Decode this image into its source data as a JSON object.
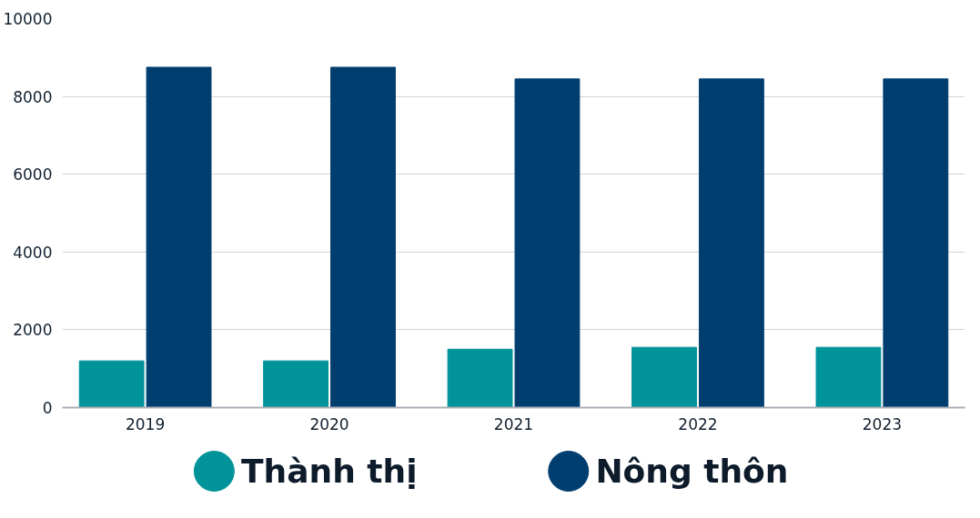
{
  "chart_data": {
    "type": "bar",
    "categories": [
      "2019",
      "2020",
      "2021",
      "2022",
      "2023"
    ],
    "series": [
      {
        "name": "Thành thị",
        "color": "#00939a",
        "values": [
          1200,
          1200,
          1500,
          1550,
          1550
        ]
      },
      {
        "name": "Nông thôn",
        "color": "#003e70",
        "values": [
          8750,
          8750,
          8450,
          8450,
          8450
        ]
      }
    ],
    "ylim": [
      0,
      10000
    ],
    "yticks": [
      0,
      2000,
      4000,
      6000,
      8000,
      10000
    ],
    "grid": "y",
    "legend": "bottom"
  }
}
